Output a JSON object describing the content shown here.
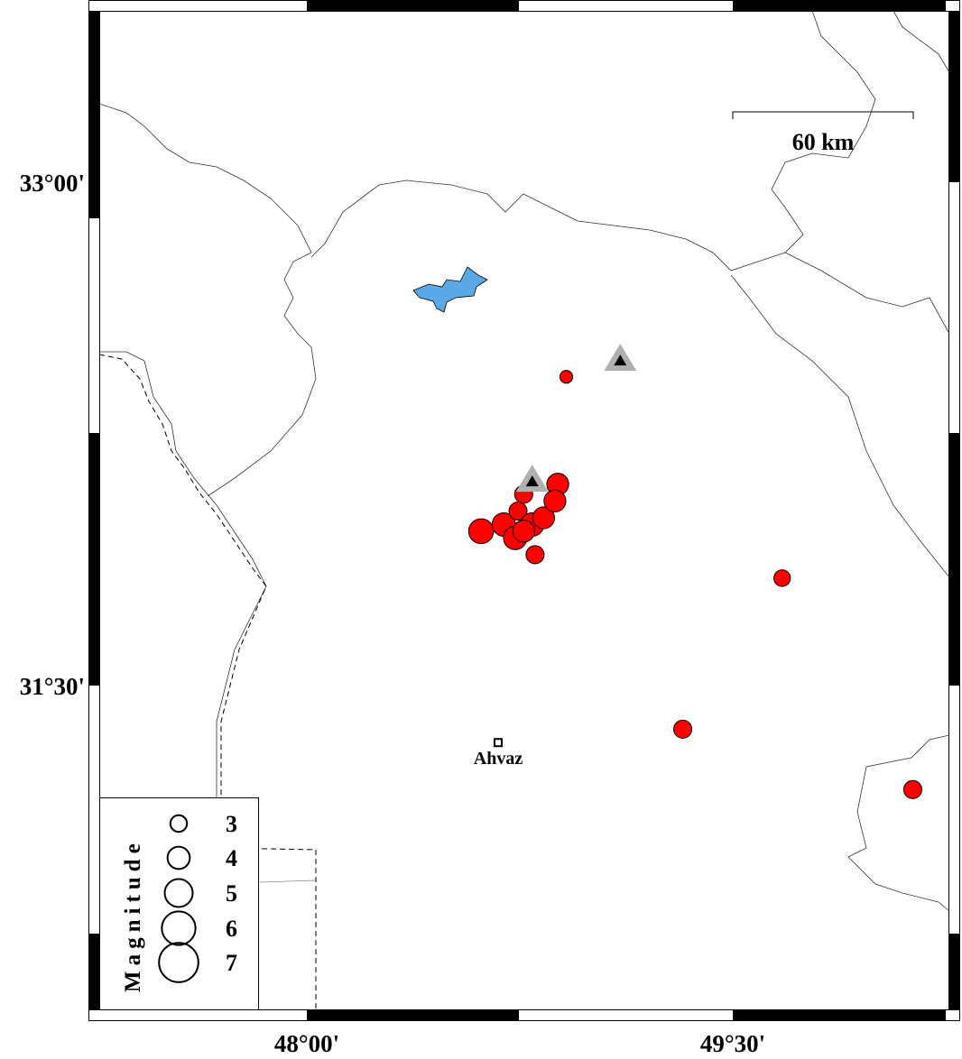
{
  "map": {
    "extent": {
      "lon_min": 47.275,
      "lon_max": 50.27,
      "lat_min": 30.5,
      "lat_max": 33.51
    },
    "lon_ticks": [
      {
        "value": 48.0,
        "label": "48°00'"
      },
      {
        "value": 49.5,
        "label": "49°30'"
      }
    ],
    "lat_ticks": [
      {
        "value": 33.0,
        "label": "33°00'"
      },
      {
        "value": 31.5,
        "label": "31°30'"
      }
    ],
    "scale_bar": {
      "label": "60 km",
      "km": 60
    },
    "city": {
      "name": "Ahvaz",
      "lon": 48.68,
      "lat": 31.33
    },
    "stations": [
      {
        "lon": 49.11,
        "lat": 32.47
      },
      {
        "lon": 48.8,
        "lat": 32.11
      }
    ],
    "events": [
      {
        "lon": 48.92,
        "lat": 32.42,
        "mag": 2.4
      },
      {
        "lon": 49.68,
        "lat": 31.82,
        "mag": 2.9
      },
      {
        "lon": 49.33,
        "lat": 31.37,
        "mag": 3.1
      },
      {
        "lon": 50.14,
        "lat": 31.19,
        "mag": 3.1
      },
      {
        "lon": 48.62,
        "lat": 31.96,
        "mag": 4.0
      },
      {
        "lon": 48.7,
        "lat": 31.98,
        "mag": 3.8
      },
      {
        "lon": 48.74,
        "lat": 31.94,
        "mag": 3.8
      },
      {
        "lon": 48.77,
        "lat": 32.07,
        "mag": 3.1
      },
      {
        "lon": 48.75,
        "lat": 32.02,
        "mag": 3.1
      },
      {
        "lon": 48.8,
        "lat": 31.98,
        "mag": 3.8
      },
      {
        "lon": 48.84,
        "lat": 32.0,
        "mag": 3.6
      },
      {
        "lon": 48.89,
        "lat": 32.1,
        "mag": 3.6
      },
      {
        "lon": 48.88,
        "lat": 32.05,
        "mag": 3.6
      },
      {
        "lon": 48.77,
        "lat": 31.96,
        "mag": 3.6
      },
      {
        "lon": 48.81,
        "lat": 31.89,
        "mag": 3.1
      }
    ],
    "colors": {
      "event": "#ff0000",
      "lake": "#5ba8e6",
      "station_halo": "#b0b0b0",
      "station": "#000000"
    }
  },
  "legend": {
    "title": "Magnitude",
    "items": [
      {
        "mag": 3,
        "label": "3"
      },
      {
        "mag": 4,
        "label": "4"
      },
      {
        "mag": 5,
        "label": "5"
      },
      {
        "mag": 6,
        "label": "6"
      },
      {
        "mag": 7,
        "label": "7"
      }
    ]
  }
}
